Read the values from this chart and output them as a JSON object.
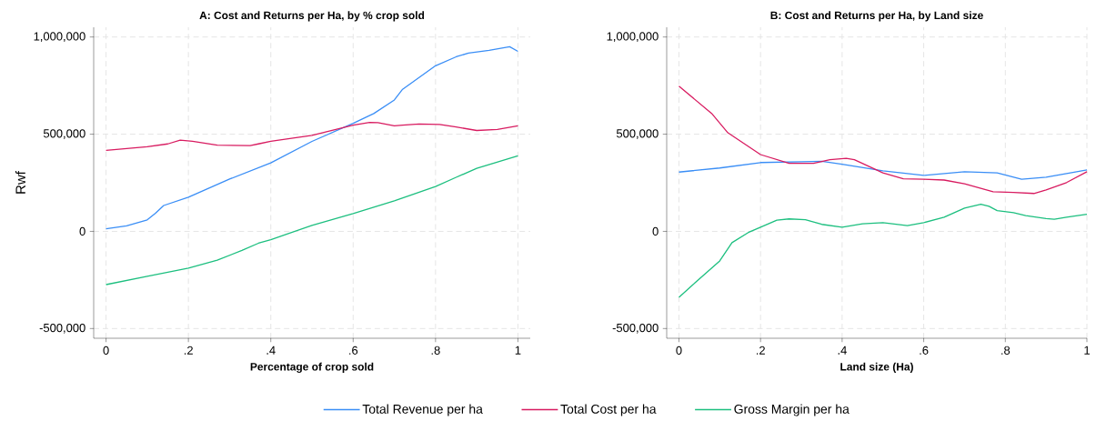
{
  "chart_data": [
    {
      "type": "line",
      "title": "A: Cost and Returns per Ha, by % crop sold",
      "xlabel": "Percentage of crop sold",
      "ylabel": "Rwf",
      "xlim": [
        -0.03,
        1.03
      ],
      "ylim": [
        -550000,
        1050000
      ],
      "xticks": [
        0,
        {
          "value": 0.2,
          "label": ".2"
        },
        {
          "value": 0.4,
          "label": ".4"
        },
        {
          "value": 0.6,
          "label": ".6"
        },
        {
          "value": 0.8,
          "label": ".8"
        },
        1
      ],
      "yticks": [
        {
          "value": -500000,
          "label": "-500,000"
        },
        0,
        {
          "value": 500000,
          "label": "500,000"
        },
        {
          "value": 1000000,
          "label": "1,000,000"
        }
      ],
      "grid": true,
      "legend": "bottom",
      "line_style": "solid",
      "marker": "none",
      "series": [
        {
          "name": "Total Revenue per ha",
          "color": "#3a8ef6",
          "x": [
            0,
            0.05,
            0.1,
            0.12,
            0.14,
            0.2,
            0.3,
            0.4,
            0.5,
            0.6,
            0.65,
            0.7,
            0.72,
            0.8,
            0.85,
            0.88,
            0.93,
            0.98,
            1
          ],
          "values": [
            13000,
            28000,
            59000,
            93000,
            133000,
            176000,
            269000,
            352000,
            463000,
            556000,
            606000,
            676000,
            731000,
            852000,
            898000,
            917000,
            931000,
            950000,
            926000
          ]
        },
        {
          "name": "Total Cost per ha",
          "color": "#d81b60",
          "x": [
            0,
            0.1,
            0.15,
            0.18,
            0.21,
            0.27,
            0.35,
            0.37,
            0.4,
            0.5,
            0.6,
            0.64,
            0.66,
            0.7,
            0.72,
            0.76,
            0.81,
            0.85,
            0.9,
            0.95,
            1
          ],
          "values": [
            417000,
            435000,
            450000,
            469000,
            463000,
            444000,
            441000,
            450000,
            463000,
            494000,
            546000,
            561000,
            559000,
            543000,
            546000,
            552000,
            550000,
            537000,
            519000,
            524000,
            543000
          ]
        },
        {
          "name": "Gross Margin per ha",
          "color": "#1cbf7f",
          "x": [
            0,
            0.1,
            0.2,
            0.27,
            0.33,
            0.37,
            0.4,
            0.5,
            0.6,
            0.7,
            0.8,
            0.85,
            0.9,
            1
          ],
          "values": [
            -274000,
            -231000,
            -189000,
            -148000,
            -98000,
            -61000,
            -43000,
            31000,
            91000,
            157000,
            231000,
            278000,
            324000,
            389000
          ]
        }
      ]
    },
    {
      "type": "line",
      "title": "B: Cost and Returns per Ha, by Land size",
      "xlabel": "Land size (Ha)",
      "xlim": [
        -0.03,
        1.0
      ],
      "ylim": [
        -550000,
        1050000
      ],
      "xticks": [
        0,
        {
          "value": 0.2,
          "label": ".2"
        },
        {
          "value": 0.4,
          "label": ".4"
        },
        {
          "value": 0.6,
          "label": ".6"
        },
        {
          "value": 0.8,
          "label": ".8"
        },
        1
      ],
      "yticks": [
        {
          "value": -500000,
          "label": "-500,000"
        },
        0,
        {
          "value": 500000,
          "label": "500,000"
        },
        {
          "value": 1000000,
          "label": "1,000,000"
        }
      ],
      "grid": true,
      "line_style": "solid",
      "marker": "none",
      "series": [
        {
          "color": "#3a8ef6",
          "x": [
            0,
            0.1,
            0.2,
            0.3,
            0.35,
            0.4,
            0.5,
            0.6,
            0.7,
            0.78,
            0.84,
            0.9,
            1
          ],
          "values": [
            305000,
            326000,
            354000,
            358000,
            361000,
            345000,
            311000,
            288000,
            307000,
            301000,
            268000,
            279000,
            316000
          ]
        },
        {
          "color": "#d81b60",
          "x": [
            0,
            0.08,
            0.12,
            0.2,
            0.27,
            0.33,
            0.37,
            0.41,
            0.43,
            0.5,
            0.55,
            0.6,
            0.65,
            0.7,
            0.77,
            0.82,
            0.87,
            0.9,
            0.95,
            1
          ],
          "values": [
            747000,
            607000,
            507000,
            395000,
            350000,
            350000,
            369000,
            376000,
            369000,
            301000,
            270000,
            268000,
            264000,
            245000,
            204000,
            200000,
            195000,
            213000,
            251000,
            307000
          ]
        },
        {
          "color": "#1cbf7f",
          "x": [
            0,
            0.05,
            0.1,
            0.13,
            0.17,
            0.2,
            0.24,
            0.27,
            0.31,
            0.35,
            0.4,
            0.45,
            0.5,
            0.56,
            0.6,
            0.65,
            0.7,
            0.74,
            0.76,
            0.78,
            0.82,
            0.85,
            0.9,
            0.92,
            0.95,
            1
          ],
          "values": [
            -339000,
            -245000,
            -152000,
            -58000,
            -6000,
            21000,
            58000,
            64000,
            60000,
            36000,
            21000,
            39000,
            45000,
            30000,
            45000,
            73000,
            120000,
            140000,
            129000,
            107000,
            96000,
            81000,
            66000,
            62000,
            73000,
            88000
          ]
        }
      ]
    }
  ]
}
